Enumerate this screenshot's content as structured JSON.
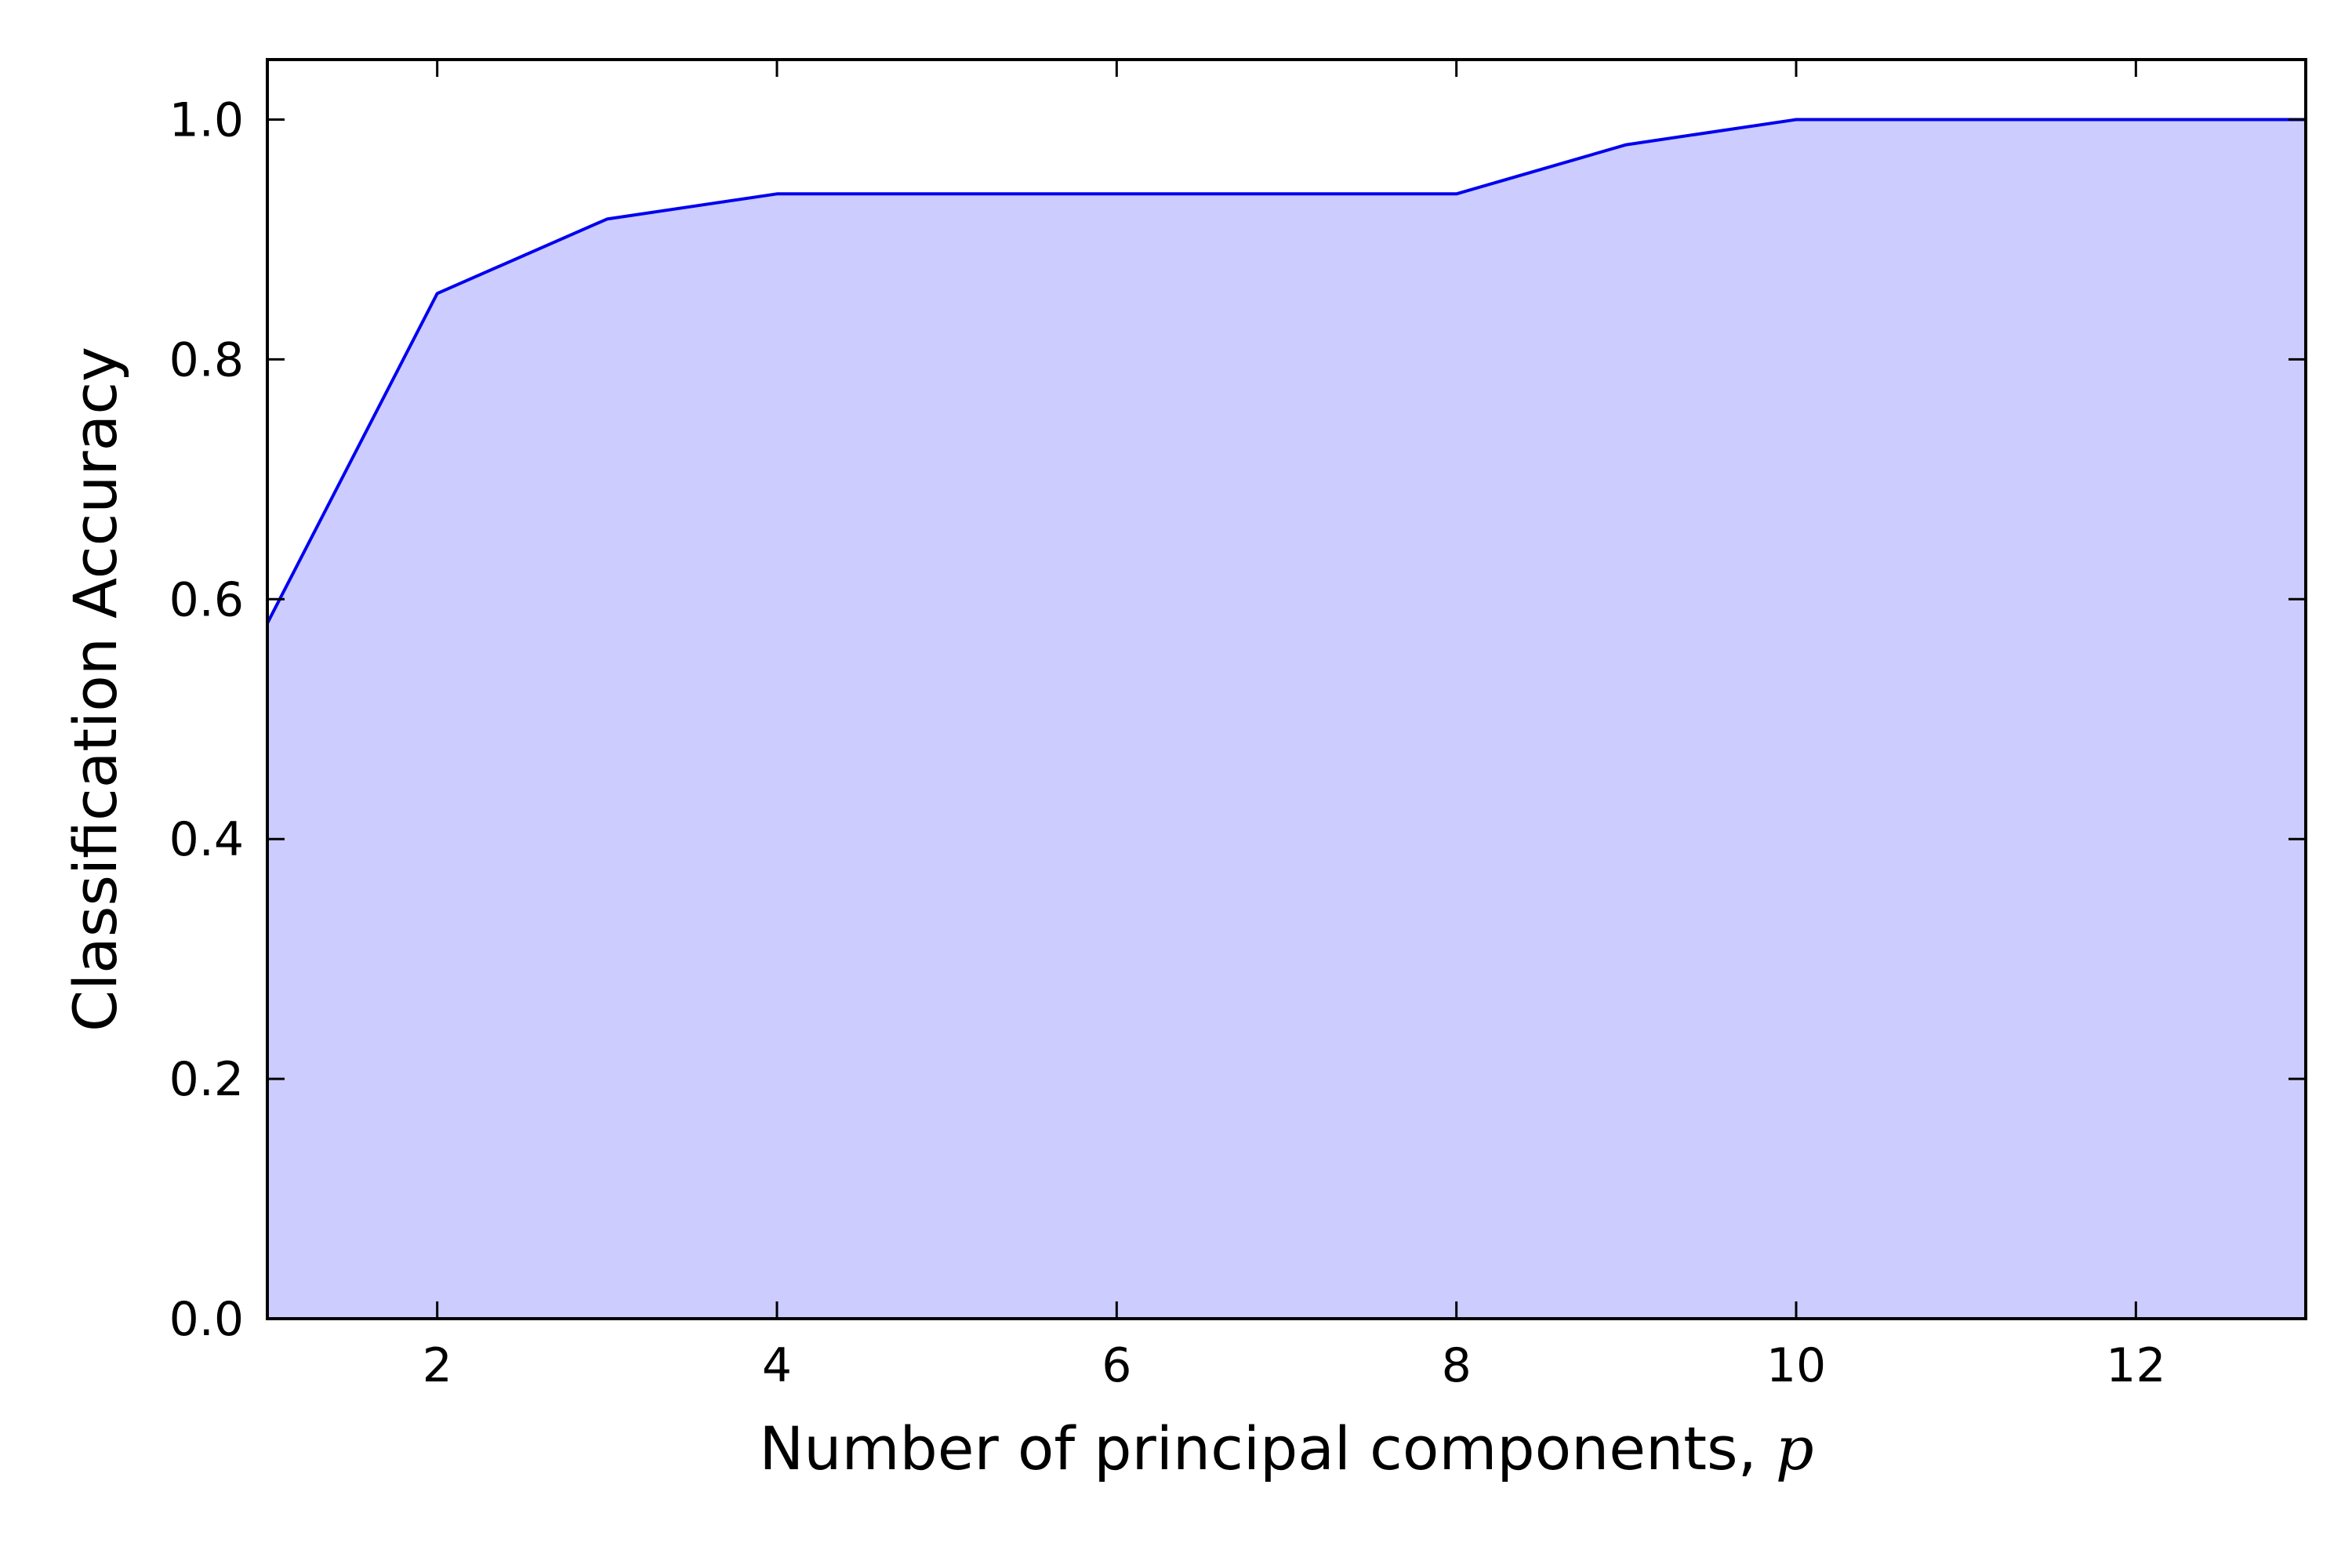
{
  "chart_data": {
    "type": "area",
    "title": "",
    "xlabel": "Number of principal components, ",
    "xlabel_var": "p",
    "ylabel": "Classification Accuracy",
    "xlim": [
      1,
      13
    ],
    "ylim": [
      0.0,
      1.05
    ],
    "x_ticks": [
      2,
      4,
      6,
      8,
      10,
      12
    ],
    "x_tick_labels": [
      "2",
      "4",
      "6",
      "8",
      "10",
      "12"
    ],
    "y_ticks": [
      0.0,
      0.2,
      0.4,
      0.6,
      0.8,
      1.0
    ],
    "y_tick_labels": [
      "0.0",
      "0.2",
      "0.4",
      "0.6",
      "0.8",
      "1.0"
    ],
    "grid": false,
    "series": [
      {
        "x": [
          1,
          2,
          3,
          4,
          5,
          6,
          7,
          8,
          9,
          10,
          11,
          12,
          13
        ],
        "values": [
          0.58,
          0.855,
          0.917,
          0.938,
          0.938,
          0.938,
          0.938,
          0.938,
          0.979,
          1.0,
          1.0,
          1.0,
          1.0
        ],
        "line_color": "#0000ee",
        "fill_color": "#ccccff"
      }
    ]
  }
}
